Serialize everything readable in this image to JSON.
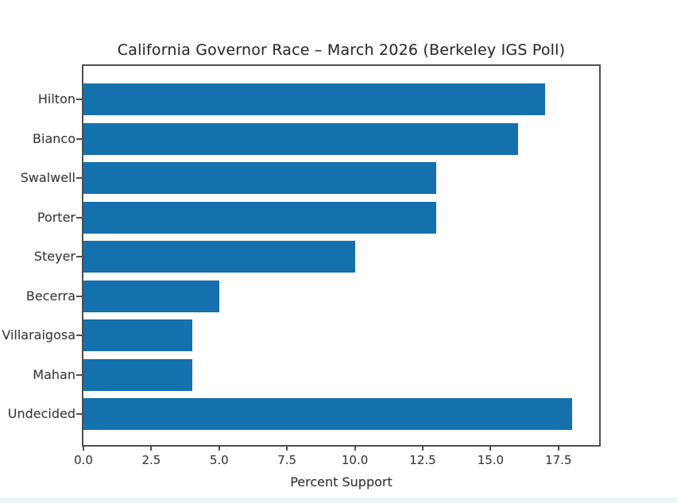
{
  "chart_data": {
    "type": "bar",
    "orientation": "horizontal",
    "title": "California Governor Race – March 2026 (Berkeley IGS Poll)",
    "xlabel": "Percent Support",
    "ylabel": "",
    "categories": [
      "Hilton",
      "Bianco",
      "Swalwell",
      "Porter",
      "Steyer",
      "Becerra",
      "Villaraigosa",
      "Mahan",
      "Undecided"
    ],
    "values": [
      17,
      16,
      13,
      13,
      10,
      5,
      4,
      4,
      18
    ],
    "xlim": [
      0,
      19
    ],
    "xticks": [
      0,
      2.5,
      5,
      7.5,
      10,
      12.5,
      15,
      17.5
    ],
    "xtick_labels": [
      "0.0",
      "2.5",
      "5.0",
      "7.5",
      "10.0",
      "12.5",
      "15.0",
      "17.5"
    ],
    "bar_color": "#1471ae",
    "axis_color": "#4f4f4f",
    "text_color": "#3a3a3a",
    "background_color": "#ffffff",
    "grid": false,
    "legend": null
  }
}
